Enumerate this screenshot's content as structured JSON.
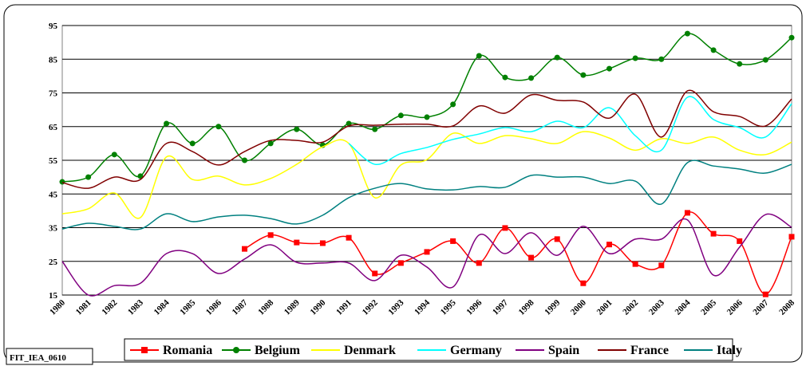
{
  "chart_data": {
    "type": "line",
    "categories": [
      "1980",
      "1981",
      "1982",
      "1983",
      "1984",
      "1985",
      "1986",
      "1987",
      "1988",
      "1989",
      "1990",
      "1991",
      "1992",
      "1993",
      "1994",
      "1995",
      "1996",
      "1997",
      "1998",
      "1999",
      "2000",
      "2001",
      "2002",
      "2003",
      "2004",
      "2005",
      "2006",
      "2007",
      "2008"
    ],
    "series": [
      {
        "name": "Romania",
        "color": "#ff0000",
        "marker": "square",
        "values": [
          null,
          null,
          null,
          null,
          null,
          null,
          null,
          28.7,
          32.8,
          30.6,
          30.4,
          32,
          21.4,
          24.5,
          27.8,
          31,
          24.5,
          34.9,
          26.1,
          31.6,
          18.5,
          30,
          24.2,
          23.8,
          39.4,
          33.2,
          31,
          15.2,
          32.3
        ]
      },
      {
        "name": "Belgium",
        "color": "#008000",
        "marker": "circle",
        "values": [
          48.6,
          50,
          56.7,
          50.3,
          65.9,
          60,
          65,
          55,
          60,
          64.2,
          59.5,
          65.9,
          64.2,
          68.3,
          67.8,
          71.6,
          86,
          79.6,
          79.4,
          85.5,
          80.3,
          82.2,
          85.3,
          85,
          92.6,
          87.7,
          83.6,
          84.8,
          91.4
        ]
      },
      {
        "name": "Denmark",
        "color": "#ffff00",
        "values": [
          39.1,
          40.6,
          45.3,
          38,
          56,
          49.3,
          50.3,
          47.7,
          49.6,
          53.8,
          59,
          60,
          43.9,
          53.6,
          55.2,
          63,
          60,
          62.3,
          61.4,
          60,
          63.5,
          61.6,
          58,
          61.4,
          60,
          61.9,
          58,
          56.7,
          60.4
        ]
      },
      {
        "name": "Germany",
        "color": "#00ffff",
        "values": [
          null,
          null,
          null,
          null,
          null,
          null,
          null,
          null,
          null,
          null,
          null,
          60,
          53.8,
          57,
          58.8,
          61.2,
          62.8,
          64.7,
          63.5,
          66.6,
          64.7,
          70.6,
          62.3,
          58,
          73.7,
          67.1,
          64.7,
          61.9,
          71.8
        ]
      },
      {
        "name": "Spain",
        "color": "#800080",
        "values": [
          25,
          15,
          17.8,
          18.5,
          27.3,
          27.3,
          21.4,
          25.7,
          29.9,
          24.7,
          24.5,
          24.5,
          19.3,
          26.8,
          23.3,
          17.4,
          32.8,
          27.3,
          33.5,
          26.8,
          35.4,
          27.3,
          31.6,
          31.6,
          37.3,
          20.9,
          29.2,
          38.9,
          35.1
        ]
      },
      {
        "name": "France",
        "color": "#800000",
        "values": [
          48.4,
          46.7,
          50,
          49.3,
          60,
          57.6,
          53.6,
          57.6,
          60.9,
          60.9,
          60.4,
          65.2,
          65.4,
          65.7,
          65.7,
          65.2,
          71.1,
          69,
          74.4,
          72.8,
          72.3,
          67.5,
          74.6,
          61.9,
          75.6,
          69.4,
          68,
          65.2,
          73.2
        ]
      },
      {
        "name": "Italy",
        "color": "#008080",
        "values": [
          34.6,
          36.3,
          35.4,
          34.6,
          39.1,
          36.8,
          38.2,
          38.7,
          37.7,
          36.1,
          38.7,
          43.9,
          46.7,
          48.1,
          46.5,
          46.2,
          47.2,
          47,
          50.5,
          50,
          50,
          48.1,
          48.8,
          42,
          54.3,
          53.3,
          52.4,
          51.2,
          53.8
        ]
      }
    ],
    "ylim": [
      15,
      95
    ],
    "yticks": [
      15,
      25,
      35,
      45,
      55,
      65,
      75,
      85,
      95
    ],
    "grid": true,
    "footnote": "FIT_IEA_0610"
  }
}
